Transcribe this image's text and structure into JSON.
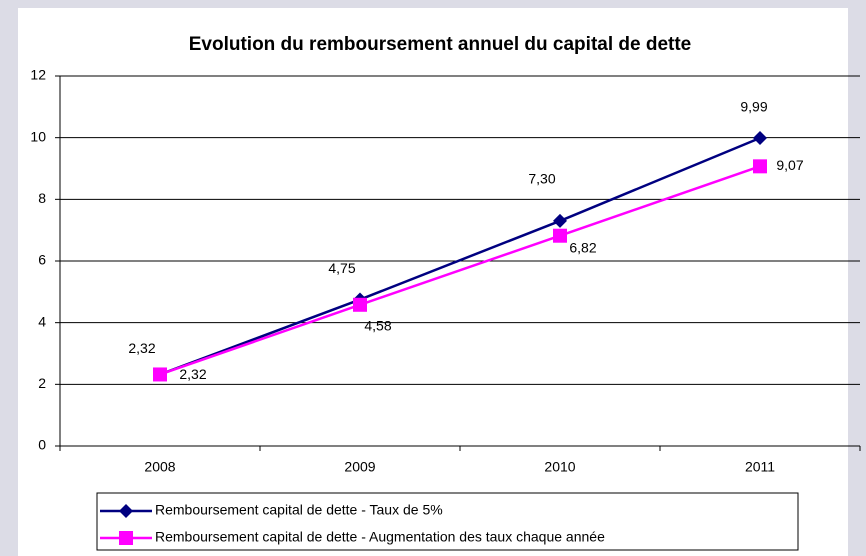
{
  "chart_data": {
    "type": "line",
    "title": "Evolution du remboursement annuel du capital de dette",
    "categories": [
      "2008",
      "2009",
      "2010",
      "2011"
    ],
    "series": [
      {
        "name": "Remboursement capital de dette - Taux de 5%",
        "color": "#000080",
        "marker": "diamond",
        "values": [
          2.32,
          4.75,
          7.3,
          9.99
        ],
        "value_labels": [
          "2,32",
          "4,75",
          "7,30",
          "9,99"
        ]
      },
      {
        "name": "Remboursement capital de dette - Augmentation des taux chaque année",
        "color": "#ff00ff",
        "marker": "square",
        "values": [
          2.32,
          4.58,
          6.82,
          9.07
        ],
        "value_labels": [
          "2,32",
          "4,58",
          "6,82",
          "9,07"
        ]
      }
    ],
    "ylim": [
      0,
      12
    ],
    "yticks": [
      0,
      2,
      4,
      6,
      8,
      10,
      12
    ],
    "grid": true,
    "legend": "bottom"
  }
}
